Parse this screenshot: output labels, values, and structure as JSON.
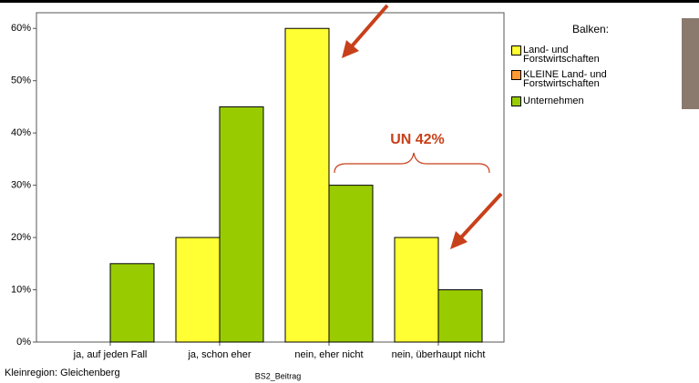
{
  "chart_data": {
    "type": "bar",
    "categories": [
      "ja, auf jeden Fall",
      "ja, schon eher",
      "nein, eher nicht",
      "nein, überhaupt nicht"
    ],
    "series": [
      {
        "name": "Land- und Forstwirtschaften",
        "color": "#ffff33",
        "values": [
          null,
          20,
          60,
          20
        ]
      },
      {
        "name": "KLEINE Land- und Forstwirtschaften",
        "color": "#ff9933",
        "values": [
          null,
          null,
          null,
          null
        ]
      },
      {
        "name": "Unternehmen",
        "color": "#99cc00",
        "values": [
          15,
          45,
          30,
          10
        ]
      }
    ],
    "ylim": [
      0,
      63
    ],
    "yticks": [
      {
        "value": 0,
        "label": "0%"
      },
      {
        "value": 10,
        "label": "10%"
      },
      {
        "value": 20,
        "label": "20%"
      },
      {
        "value": 30,
        "label": "30%"
      },
      {
        "value": 40,
        "label": "40%"
      },
      {
        "value": 50,
        "label": "50%"
      },
      {
        "value": 60,
        "label": "60%"
      }
    ],
    "grid": false,
    "legend_title": "Balken:",
    "x_label": "BS2_Beitrag",
    "footnote": "Kleinregion: Gleichenberg",
    "annotation": "UN 42%"
  }
}
